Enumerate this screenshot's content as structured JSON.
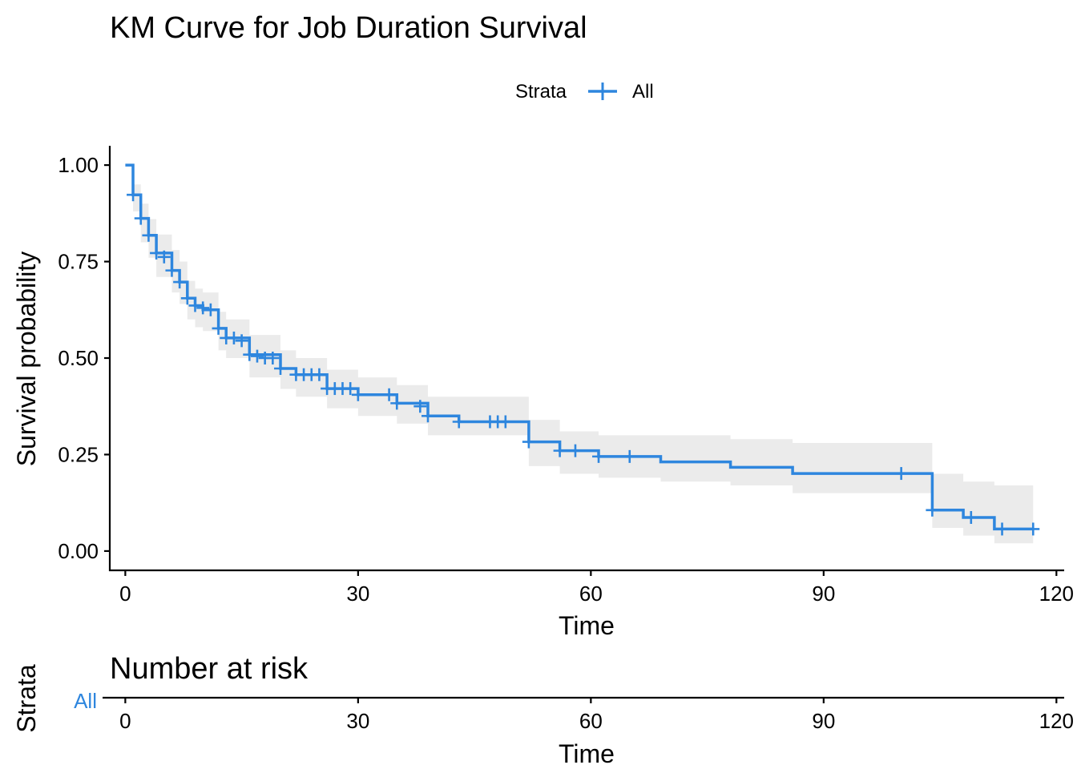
{
  "chart_data": {
    "type": "line",
    "title": "KM Curve for Job Duration Survival",
    "xlabel": "Time",
    "ylabel": "Survival probability",
    "xlim": [
      -2,
      121
    ],
    "ylim": [
      -0.05,
      1.05
    ],
    "xticks": [
      0,
      30,
      60,
      90,
      120
    ],
    "yticks": [
      0,
      0.25,
      0.5,
      0.75,
      1
    ],
    "ytick_labels": [
      "0.00",
      "0.25",
      "0.50",
      "0.75",
      "1.00"
    ],
    "grid": false,
    "legend": {
      "title": "Strata",
      "position": "top"
    },
    "colors": {
      "curve": "#2E86DE",
      "ribbon": "#EBEBEB",
      "axis": "#000000"
    },
    "series": [
      {
        "name": "All",
        "steps": [
          [
            0,
            1.0
          ],
          [
            1,
            0.923
          ],
          [
            2,
            0.862
          ],
          [
            3,
            0.818
          ],
          [
            4,
            0.772
          ],
          [
            6,
            0.727
          ],
          [
            7,
            0.697
          ],
          [
            8,
            0.655
          ],
          [
            9,
            0.636
          ],
          [
            10,
            0.625
          ],
          [
            12,
            0.577
          ],
          [
            13,
            0.552
          ],
          [
            16,
            0.509
          ],
          [
            20,
            0.473
          ],
          [
            22,
            0.457
          ],
          [
            26,
            0.421
          ],
          [
            30,
            0.405
          ],
          [
            35,
            0.383
          ],
          [
            39,
            0.35
          ],
          [
            43,
            0.335
          ],
          [
            52,
            0.283
          ],
          [
            56,
            0.26
          ],
          [
            61,
            0.245
          ],
          [
            69,
            0.231
          ],
          [
            78,
            0.217
          ],
          [
            86,
            0.201
          ],
          [
            104,
            0.106
          ],
          [
            108,
            0.087
          ],
          [
            112,
            0.057
          ],
          [
            117,
            0.057
          ]
        ],
        "ci": [
          [
            0,
            1.0,
            1.0
          ],
          [
            1,
            0.95,
            0.88
          ],
          [
            2,
            0.9,
            0.8
          ],
          [
            3,
            0.86,
            0.76
          ],
          [
            4,
            0.82,
            0.71
          ],
          [
            6,
            0.78,
            0.67
          ],
          [
            7,
            0.75,
            0.64
          ],
          [
            8,
            0.7,
            0.6
          ],
          [
            9,
            0.68,
            0.58
          ],
          [
            10,
            0.67,
            0.57
          ],
          [
            12,
            0.62,
            0.52
          ],
          [
            13,
            0.6,
            0.5
          ],
          [
            16,
            0.56,
            0.45
          ],
          [
            20,
            0.52,
            0.42
          ],
          [
            22,
            0.5,
            0.4
          ],
          [
            26,
            0.47,
            0.37
          ],
          [
            30,
            0.45,
            0.35
          ],
          [
            35,
            0.43,
            0.33
          ],
          [
            39,
            0.4,
            0.3
          ],
          [
            43,
            0.4,
            0.3
          ],
          [
            52,
            0.34,
            0.22
          ],
          [
            56,
            0.31,
            0.2
          ],
          [
            61,
            0.3,
            0.19
          ],
          [
            69,
            0.3,
            0.18
          ],
          [
            78,
            0.29,
            0.17
          ],
          [
            86,
            0.28,
            0.15
          ],
          [
            104,
            0.2,
            0.06
          ],
          [
            108,
            0.18,
            0.04
          ],
          [
            112,
            0.17,
            0.02
          ],
          [
            117,
            0.17,
            0.02
          ]
        ],
        "censored": [
          [
            1,
            0.923
          ],
          [
            2,
            0.862
          ],
          [
            3,
            0.818
          ],
          [
            4,
            0.772
          ],
          [
            5,
            0.762
          ],
          [
            6,
            0.727
          ],
          [
            7,
            0.697
          ],
          [
            8,
            0.655
          ],
          [
            9,
            0.636
          ],
          [
            10,
            0.63
          ],
          [
            11,
            0.625
          ],
          [
            12,
            0.577
          ],
          [
            13,
            0.552
          ],
          [
            14,
            0.552
          ],
          [
            15,
            0.545
          ],
          [
            16,
            0.509
          ],
          [
            17,
            0.505
          ],
          [
            18,
            0.5
          ],
          [
            19,
            0.5
          ],
          [
            20,
            0.473
          ],
          [
            22,
            0.457
          ],
          [
            23,
            0.457
          ],
          [
            24,
            0.457
          ],
          [
            25,
            0.457
          ],
          [
            26,
            0.421
          ],
          [
            27,
            0.421
          ],
          [
            28,
            0.421
          ],
          [
            29,
            0.421
          ],
          [
            30,
            0.405
          ],
          [
            34,
            0.405
          ],
          [
            35,
            0.383
          ],
          [
            38,
            0.375
          ],
          [
            39,
            0.35
          ],
          [
            43,
            0.335
          ],
          [
            47,
            0.335
          ],
          [
            48,
            0.335
          ],
          [
            49,
            0.335
          ],
          [
            52,
            0.283
          ],
          [
            56,
            0.26
          ],
          [
            58,
            0.26
          ],
          [
            61,
            0.245
          ],
          [
            65,
            0.245
          ],
          [
            100,
            0.201
          ],
          [
            104,
            0.106
          ],
          [
            109,
            0.087
          ],
          [
            113,
            0.057
          ],
          [
            117,
            0.057
          ]
        ]
      }
    ],
    "risk_table": {
      "title": "Number at risk",
      "ylabel": "Strata",
      "xlabel": "Time",
      "strata": [
        "All"
      ],
      "xticks": [
        0,
        30,
        60,
        90,
        120
      ]
    }
  }
}
